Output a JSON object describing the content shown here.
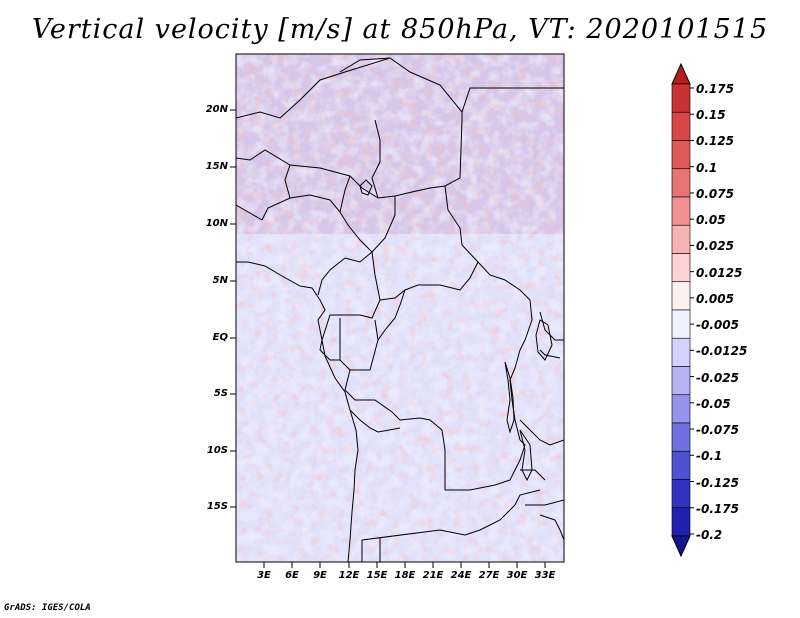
{
  "title": "Vertical velocity [m/s] at 850hPa, VT: 2020101515",
  "footer": "GrADS: IGES/COLA",
  "lat_labels": [
    "20N",
    "15N",
    "10N",
    "5N",
    "EQ",
    "5S",
    "10S",
    "15S"
  ],
  "lon_labels": [
    "3E",
    "6E",
    "9E",
    "12E",
    "15E",
    "18E",
    "21E",
    "24E",
    "27E",
    "30E",
    "33E"
  ],
  "colorbar": {
    "labels": [
      "0.175",
      "0.15",
      "0.125",
      "0.1",
      "0.075",
      "0.05",
      "0.025",
      "0.0125",
      "0.005",
      "-0.005",
      "-0.0125",
      "-0.025",
      "-0.05",
      "-0.075",
      "-0.1",
      "-0.125",
      "-0.175",
      "-0.2"
    ],
    "colors": [
      "#b41e1e",
      "#c83232",
      "#d84646",
      "#e05a5a",
      "#e87474",
      "#f09090",
      "#f8b4b4",
      "#fcd2d2",
      "#fff0f0",
      "#f0f0ff",
      "#d2d2fc",
      "#b4b4f4",
      "#9494ec",
      "#7070e0",
      "#5050d0",
      "#3232c0",
      "#2020b0",
      "#141496"
    ]
  }
}
